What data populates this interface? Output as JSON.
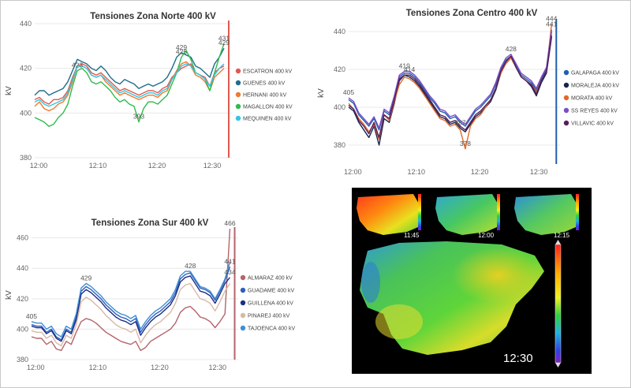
{
  "chart_data": [
    {
      "id": "norte",
      "type": "line",
      "title": "Tensiones Zona Norte 400 kV",
      "ylabel": "kV",
      "ylim": [
        380,
        440
      ],
      "yticks": [
        380,
        400,
        420,
        440
      ],
      "xticks": [
        "12:00",
        "12:10",
        "12:20",
        "12:30"
      ],
      "x": [
        0,
        1,
        2,
        3,
        4,
        5,
        6,
        7,
        8,
        9,
        10,
        11,
        12,
        13,
        14,
        15,
        16,
        17,
        18,
        19,
        20,
        21,
        22,
        23,
        24,
        25,
        26,
        27,
        28,
        29,
        30,
        31,
        32,
        33,
        34,
        35,
        36,
        37,
        38,
        39,
        40
      ],
      "series": [
        {
          "name": "ESCATRON 400 kV",
          "color": "#e05a4f",
          "values": [
            406,
            407,
            405,
            404,
            406,
            406,
            407,
            410,
            416,
            421,
            422,
            421,
            418,
            417,
            418,
            416,
            414,
            412,
            410,
            411,
            410,
            409,
            408,
            409,
            410,
            410,
            409,
            411,
            412,
            416,
            418,
            420,
            421,
            422,
            418,
            417,
            416,
            412,
            418,
            420,
            421
          ]
        },
        {
          "name": "GUENES 400 kV",
          "color": "#1e6d8a",
          "values": [
            408,
            410,
            410,
            408,
            409,
            410,
            411,
            414,
            419,
            424,
            423,
            422,
            420,
            419,
            421,
            419,
            416,
            414,
            413,
            415,
            414,
            413,
            411,
            412,
            413,
            412,
            413,
            414,
            416,
            420,
            425,
            427,
            426,
            425,
            421,
            420,
            418,
            416,
            422,
            425,
            429
          ]
        },
        {
          "name": "HERNANI 400 kV",
          "color": "#f07a2e",
          "values": [
            403,
            405,
            402,
            401,
            402,
            404,
            405,
            408,
            414,
            421,
            421,
            420,
            417,
            416,
            417,
            414,
            412,
            410,
            408,
            409,
            408,
            407,
            406,
            407,
            408,
            408,
            407,
            409,
            410,
            415,
            419,
            422,
            423,
            421,
            417,
            416,
            414,
            410,
            416,
            418,
            420
          ]
        },
        {
          "name": "MAGALLON 400 kV",
          "color": "#2ebc4a",
          "values": [
            398,
            397,
            396,
            394,
            395,
            398,
            400,
            404,
            412,
            419,
            420,
            418,
            414,
            413,
            414,
            412,
            410,
            407,
            405,
            406,
            404,
            403,
            396,
            402,
            405,
            405,
            404,
            406,
            408,
            413,
            418,
            425,
            428,
            424,
            418,
            417,
            415,
            410,
            418,
            425,
            431
          ]
        },
        {
          "name": "MEQUINEN 400 kV",
          "color": "#33c6e6",
          "values": [
            405,
            406,
            404,
            403,
            404,
            405,
            406,
            409,
            415,
            421,
            421,
            420,
            417,
            416,
            417,
            415,
            413,
            411,
            409,
            410,
            409,
            408,
            407,
            408,
            409,
            409,
            408,
            410,
            411,
            415,
            418,
            421,
            422,
            421,
            418,
            417,
            415,
            412,
            417,
            420,
            422
          ]
        }
      ],
      "labels": [
        "423",
        "393",
        "429",
        "425",
        "431",
        "429"
      ]
    },
    {
      "id": "centro",
      "type": "line",
      "title": "Tensiones Zona Centro 400 kV",
      "ylabel": "kV",
      "ylim": [
        370,
        445
      ],
      "yticks": [
        380,
        400,
        420,
        440
      ],
      "xticks": [
        "12:00",
        "12:10",
        "12:20",
        "12:30"
      ],
      "x": [
        0,
        1,
        2,
        3,
        4,
        5,
        6,
        7,
        8,
        9,
        10,
        11,
        12,
        13,
        14,
        15,
        16,
        17,
        18,
        19,
        20,
        21,
        22,
        23,
        24,
        25,
        26,
        27,
        28,
        29,
        30,
        31,
        32,
        33,
        34,
        35,
        36,
        37,
        38,
        39,
        40
      ],
      "series": [
        {
          "name": "GALAPAGA 400 kV",
          "color": "#1f5fb0",
          "values": [
            404,
            402,
            396,
            393,
            390,
            394,
            388,
            398,
            396,
            405,
            416,
            418,
            418,
            416,
            413,
            409,
            405,
            402,
            398,
            397,
            394,
            395,
            392,
            390,
            394,
            398,
            400,
            403,
            406,
            412,
            420,
            425,
            427,
            422,
            417,
            415,
            413,
            409,
            415,
            420,
            440
          ]
        },
        {
          "name": "MORALEJA 400 kV",
          "color": "#15254f",
          "values": [
            400,
            398,
            392,
            388,
            384,
            390,
            380,
            394,
            392,
            402,
            414,
            417,
            416,
            414,
            411,
            407,
            403,
            399,
            395,
            394,
            391,
            392,
            389,
            387,
            391,
            395,
            397,
            400,
            403,
            409,
            418,
            424,
            427,
            421,
            416,
            414,
            411,
            406,
            413,
            418,
            437
          ]
        },
        {
          "name": "MORATA 400 kV",
          "color": "#e06a2a",
          "values": [
            402,
            399,
            394,
            391,
            387,
            391,
            383,
            396,
            393,
            403,
            412,
            416,
            415,
            413,
            410,
            406,
            402,
            398,
            394,
            393,
            390,
            391,
            388,
            378,
            390,
            394,
            396,
            400,
            404,
            410,
            418,
            423,
            426,
            421,
            416,
            414,
            412,
            408,
            414,
            419,
            444
          ]
        },
        {
          "name": "SS REYES 400 kV",
          "color": "#7a4fc4",
          "values": [
            405,
            403,
            397,
            394,
            391,
            395,
            389,
            399,
            397,
            406,
            417,
            419,
            419,
            417,
            414,
            410,
            406,
            403,
            399,
            398,
            395,
            396,
            393,
            391,
            395,
            399,
            401,
            404,
            407,
            413,
            421,
            426,
            428,
            423,
            418,
            416,
            414,
            410,
            416,
            421,
            441
          ]
        },
        {
          "name": "VILLAVIC 400 kV",
          "color": "#5a1c5c",
          "values": [
            401,
            399,
            393,
            390,
            386,
            392,
            384,
            396,
            394,
            404,
            415,
            417,
            417,
            415,
            412,
            408,
            404,
            400,
            396,
            395,
            392,
            393,
            390,
            388,
            392,
            396,
            398,
            401,
            404,
            410,
            419,
            424,
            427,
            421,
            416,
            414,
            412,
            407,
            414,
            419,
            438
          ]
        }
      ],
      "labels": [
        "405",
        "419",
        "414",
        "387",
        "378",
        "428",
        "441",
        "444"
      ]
    },
    {
      "id": "sur",
      "type": "line",
      "title": "Tensiones Zona Sur 400 kV",
      "ylabel": "kV",
      "ylim": [
        380,
        465
      ],
      "yticks": [
        380,
        400,
        420,
        440,
        460
      ],
      "xticks": [
        "12:00",
        "12:10",
        "12:20",
        "12:30"
      ],
      "x": [
        0,
        1,
        2,
        3,
        4,
        5,
        6,
        7,
        8,
        9,
        10,
        11,
        12,
        13,
        14,
        15,
        16,
        17,
        18,
        19,
        20,
        21,
        22,
        23,
        24,
        25,
        26,
        27,
        28,
        29,
        30,
        31,
        32,
        33,
        34,
        35,
        36,
        37,
        38,
        39,
        40
      ],
      "series": [
        {
          "name": "ALMARAZ 400 kV",
          "color": "#b5646b",
          "values": [
            395,
            394,
            394,
            390,
            392,
            387,
            386,
            392,
            390,
            398,
            405,
            407,
            406,
            404,
            401,
            398,
            396,
            394,
            392,
            391,
            390,
            392,
            386,
            388,
            392,
            394,
            396,
            398,
            400,
            404,
            411,
            414,
            415,
            412,
            408,
            407,
            405,
            401,
            405,
            410,
            466
          ]
        },
        {
          "name": "GUADAME 400 kV",
          "color": "#2f5fbd",
          "values": [
            403,
            402,
            402,
            398,
            400,
            395,
            393,
            400,
            398,
            408,
            425,
            428,
            426,
            423,
            420,
            416,
            413,
            410,
            408,
            407,
            405,
            407,
            398,
            403,
            407,
            410,
            412,
            415,
            418,
            424,
            433,
            436,
            437,
            432,
            427,
            426,
            424,
            419,
            425,
            432,
            441
          ]
        },
        {
          "name": "GUILLENA 400 kV",
          "color": "#1c2e86",
          "values": [
            402,
            401,
            401,
            397,
            399,
            394,
            392,
            399,
            397,
            406,
            423,
            426,
            424,
            421,
            418,
            414,
            411,
            408,
            406,
            405,
            403,
            405,
            396,
            401,
            405,
            408,
            410,
            413,
            416,
            422,
            431,
            434,
            435,
            430,
            425,
            424,
            422,
            417,
            423,
            430,
            434
          ]
        },
        {
          "name": "PINAREJ 400 kV",
          "color": "#d8b9a6",
          "values": [
            399,
            398,
            398,
            394,
            396,
            391,
            389,
            396,
            394,
            403,
            418,
            421,
            419,
            416,
            413,
            409,
            406,
            403,
            401,
            400,
            398,
            400,
            391,
            396,
            400,
            403,
            405,
            408,
            411,
            417,
            426,
            429,
            430,
            425,
            420,
            419,
            417,
            412,
            418,
            425,
            430
          ]
        },
        {
          "name": "TAJOENCA 400 kV",
          "color": "#3f8fd6",
          "values": [
            405,
            404,
            404,
            400,
            402,
            397,
            395,
            402,
            400,
            410,
            427,
            430,
            428,
            425,
            422,
            418,
            415,
            412,
            410,
            409,
            407,
            409,
            400,
            405,
            409,
            412,
            414,
            417,
            420,
            426,
            435,
            438,
            438,
            433,
            428,
            427,
            425,
            420,
            426,
            433,
            444
          ]
        }
      ],
      "labels": [
        "405",
        "429",
        "428",
        "466",
        "441",
        "434"
      ]
    }
  ],
  "heatmap_panel": {
    "small_times": [
      "11:45",
      "12:00",
      "12:15"
    ],
    "main_time": "12:30"
  }
}
